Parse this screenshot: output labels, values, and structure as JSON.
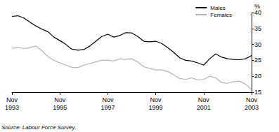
{
  "chart_data": {
    "type": "line",
    "ylabel": "%",
    "annotations": [
      "Source: Labour Force Survey."
    ],
    "legend": "top-right",
    "grid": false,
    "categories": [
      "Nov 1993",
      null,
      null,
      null,
      null,
      null,
      null,
      null,
      "Nov 1995",
      null,
      null,
      null,
      null,
      null,
      null,
      null,
      "Nov 1997",
      null,
      null,
      null,
      null,
      null,
      null,
      null,
      "Nov 1999",
      null,
      null,
      null,
      null,
      null,
      null,
      null,
      "Nov 2001",
      null,
      null,
      null,
      null,
      null,
      null,
      null,
      "Nov 2003"
    ],
    "ylim": [
      15,
      40
    ],
    "yticks": [
      15,
      20,
      25,
      30,
      35,
      40
    ],
    "series": [
      {
        "name": "Males",
        "color": "#000000",
        "values": [
          38.8,
          39.0,
          38.3,
          37.0,
          35.8,
          34.8,
          34.0,
          32.3,
          31.2,
          30.0,
          28.5,
          28.2,
          28.4,
          29.5,
          31.0,
          32.5,
          33.2,
          32.3,
          32.8,
          33.7,
          33.6,
          32.5,
          31.0,
          30.8,
          31.0,
          30.3,
          29.0,
          27.5,
          25.8,
          25.0,
          24.8,
          24.2,
          23.5,
          25.5,
          27.0,
          26.0,
          25.5,
          25.3,
          25.2,
          25.5,
          26.5
        ]
      },
      {
        "name": "Females",
        "color": "#b4b4b4",
        "values": [
          28.8,
          29.0,
          28.7,
          29.0,
          29.5,
          28.0,
          26.2,
          25.0,
          24.2,
          23.5,
          22.8,
          22.7,
          23.5,
          24.0,
          24.5,
          25.0,
          25.0,
          24.8,
          25.5,
          25.3,
          25.5,
          24.5,
          23.0,
          22.5,
          22.0,
          22.0,
          21.5,
          20.5,
          19.3,
          19.0,
          19.5,
          18.8,
          19.0,
          20.0,
          19.5,
          18.0,
          17.8,
          18.3,
          18.5,
          17.5,
          15.8
        ]
      }
    ]
  }
}
